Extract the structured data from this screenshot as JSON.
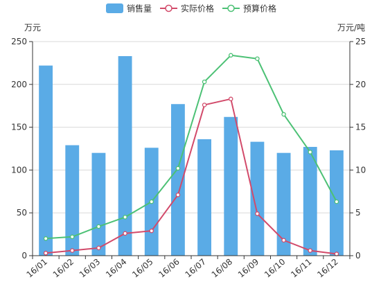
{
  "chart_data": {
    "type": "bar",
    "categories": [
      "16/01",
      "16/02",
      "16/03",
      "16/04",
      "16/05",
      "16/06",
      "16/07",
      "16/08",
      "16/09",
      "16/10",
      "16/11",
      "16/12"
    ],
    "y_left_label": "万元",
    "y_right_label": "万元/吨",
    "y_left_lim": [
      0,
      250
    ],
    "y_left_ticks": [
      0,
      50,
      100,
      150,
      200,
      250
    ],
    "y_right_lim": [
      0,
      25
    ],
    "y_right_ticks": [
      0,
      5,
      10,
      15,
      20,
      25
    ],
    "grid": true,
    "legend_placement": "top-center",
    "series": [
      {
        "name": "销售量",
        "type": "bar",
        "axis": "left",
        "color": "#5aabe6",
        "values": [
          222,
          129,
          120,
          233,
          126,
          177,
          136,
          162,
          133,
          120,
          127,
          123
        ]
      },
      {
        "name": "实际价格",
        "type": "line",
        "axis": "right",
        "color": "#d24a6a",
        "values": [
          0.3,
          0.6,
          0.9,
          2.6,
          2.9,
          7.1,
          17.6,
          18.3,
          4.9,
          1.8,
          0.6,
          0.2
        ]
      },
      {
        "name": "预算价格",
        "type": "line",
        "axis": "right",
        "color": "#4cc175",
        "values": [
          2.0,
          2.2,
          3.4,
          4.5,
          6.3,
          10.2,
          20.3,
          23.4,
          23.0,
          16.5,
          12.1,
          6.3
        ]
      }
    ]
  }
}
